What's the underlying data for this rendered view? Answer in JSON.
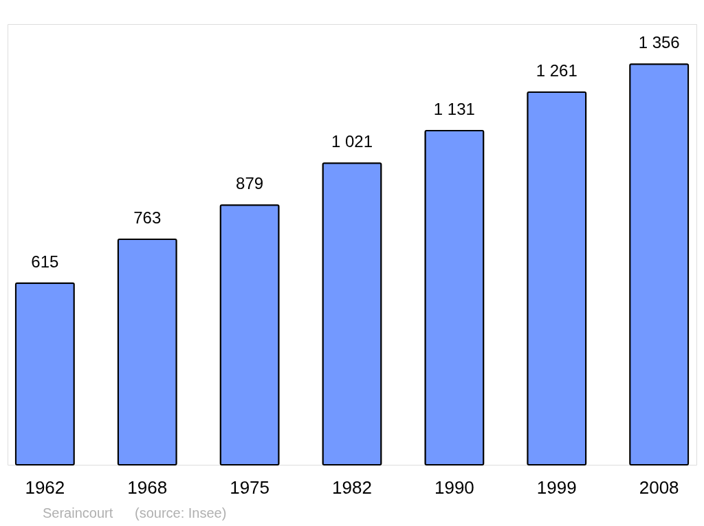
{
  "chart_data": {
    "type": "bar",
    "categories": [
      "1962",
      "1968",
      "1975",
      "1982",
      "1990",
      "1999",
      "2008"
    ],
    "values": [
      615,
      763,
      879,
      1021,
      1131,
      1261,
      1356
    ],
    "value_labels": [
      "615",
      "763",
      "879",
      "1 021",
      "1 131",
      "1 261",
      "1 356"
    ],
    "color": "#7399ff",
    "annotations": [
      "Seraincourt",
      "(source: Insee)"
    ]
  }
}
